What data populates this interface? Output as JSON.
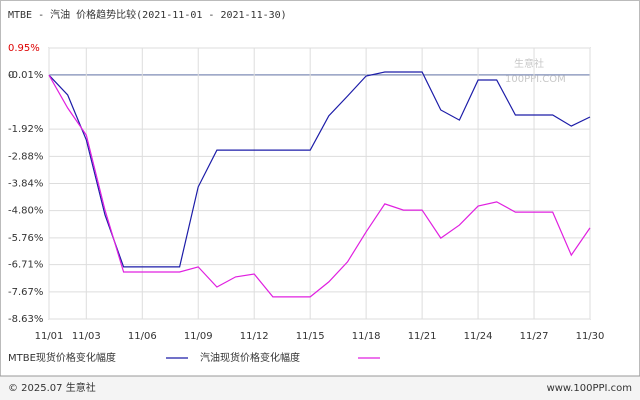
{
  "chart_data": {
    "type": "line",
    "title": "MTBE - 汽油 价格趋势比较(2021-11-01 - 2021-11-30)",
    "categories": [
      "11/01",
      null,
      "11/03",
      null,
      null,
      "11/06",
      null,
      null,
      "11/09",
      null,
      null,
      "11/12",
      null,
      null,
      "11/15",
      null,
      null,
      "11/18",
      null,
      null,
      "11/21",
      null,
      null,
      "11/24",
      null,
      null,
      "11/27",
      null,
      null,
      "11/30"
    ],
    "series": [
      {
        "name": "MTBE现货价格变化幅度",
        "color": "#1c1ca8",
        "values": [
          -0.01,
          -0.71,
          -2.3,
          -4.95,
          -6.79,
          -6.79,
          -6.79,
          -6.79,
          -3.96,
          -2.66,
          -2.66,
          -2.66,
          -2.66,
          -2.66,
          -2.66,
          -1.45,
          -0.75,
          -0.04,
          0.1,
          0.1,
          0.1,
          -1.24,
          -1.6,
          -0.18,
          -0.18,
          -1.42,
          -1.42,
          -1.42,
          -1.81,
          -1.49
        ]
      },
      {
        "name": "汽油现货价格变化幅度",
        "color": "#e020e0",
        "values": [
          -0.01,
          -1.17,
          -2.13,
          -4.78,
          -6.97,
          -6.97,
          -6.97,
          -6.97,
          -6.79,
          -7.5,
          -7.14,
          -7.04,
          -7.85,
          -7.85,
          -7.85,
          -7.32,
          -6.61,
          -5.55,
          -4.56,
          -4.78,
          -4.78,
          -5.77,
          -5.31,
          -4.64,
          -4.49,
          -4.85,
          -4.85,
          -4.85,
          -6.37,
          -5.41
        ]
      }
    ],
    "ylim": [
      -8.63,
      0.95
    ],
    "yticks": [
      {
        "value": 0.95,
        "label": "0.95%"
      },
      {
        "value": -0.01,
        "label": "-0.01%"
      },
      0,
      {
        "value": -1.92,
        "label": "-1.92%"
      },
      {
        "value": -2.88,
        "label": "-2.88%"
      },
      {
        "value": -3.84,
        "label": "-3.84%"
      },
      {
        "value": -4.8,
        "label": "-4.80%"
      },
      {
        "value": -5.76,
        "label": "-5.76%"
      },
      {
        "value": -6.71,
        "label": "-6.71%"
      },
      {
        "value": -7.67,
        "label": "-7.67%"
      },
      {
        "value": -8.63,
        "label": "-8.63%"
      }
    ],
    "grid": true,
    "watermark": {
      "name": "生意社",
      "site": "100PPI.COM"
    },
    "footer": {
      "copyright": "© 2025.07 生意社",
      "site": "www.100PPI.com"
    }
  }
}
